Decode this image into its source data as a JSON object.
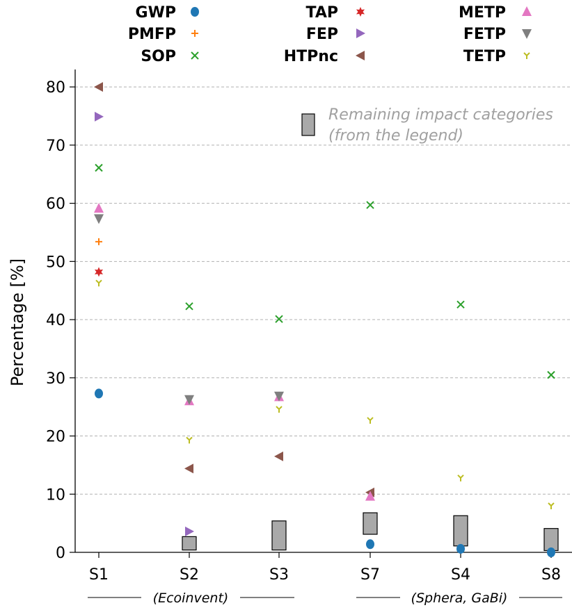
{
  "chart_data": {
    "type": "scatter",
    "ylabel": "Percentage [%]",
    "ylim": [
      0,
      83
    ],
    "yticks": [
      0,
      10,
      20,
      30,
      40,
      50,
      60,
      70,
      80
    ],
    "grid": "horizontal dashed",
    "legend_placement": "top",
    "categories": [
      "S1",
      "S2",
      "S3",
      "S7",
      "S4",
      "S8"
    ],
    "groups": [
      {
        "label": "(Ecoinvent)",
        "categories": [
          "S1",
          "S2",
          "S3"
        ]
      },
      {
        "label": "(Sphera, GaBi)",
        "categories": [
          "S7",
          "S4",
          "S8"
        ]
      }
    ],
    "series": [
      {
        "name": "GWP",
        "marker": "circle",
        "color": "#1f77b4",
        "values": [
          27.3,
          null,
          null,
          1.4,
          0.6,
          0.0
        ]
      },
      {
        "name": "PMFP",
        "marker": "plus",
        "color": "#ff7f0e",
        "values": [
          53.4,
          null,
          null,
          null,
          null,
          null
        ]
      },
      {
        "name": "SOP",
        "marker": "x",
        "color": "#2ca02c",
        "values": [
          66.1,
          42.3,
          40.1,
          59.7,
          42.6,
          30.5
        ]
      },
      {
        "name": "TAP",
        "marker": "star",
        "color": "#d62728",
        "values": [
          48.2,
          null,
          null,
          null,
          null,
          null
        ]
      },
      {
        "name": "FEP",
        "marker": "triangle-right",
        "color": "#9467bd",
        "values": [
          74.9,
          3.6,
          null,
          null,
          null,
          null
        ]
      },
      {
        "name": "HTPnc",
        "marker": "triangle-left",
        "color": "#8c564b",
        "values": [
          80.0,
          14.4,
          16.5,
          10.3,
          null,
          null
        ]
      },
      {
        "name": "METP",
        "marker": "triangle-up",
        "color": "#e377c2",
        "values": [
          59.1,
          26.0,
          26.7,
          9.6,
          null,
          null
        ]
      },
      {
        "name": "FETP",
        "marker": "triangle-down",
        "color": "#7f7f7f",
        "values": [
          57.4,
          26.3,
          26.9,
          null,
          null,
          null
        ]
      },
      {
        "name": "TETP",
        "marker": "tri-down",
        "color": "#bcbd22",
        "values": [
          46.3,
          19.3,
          24.6,
          22.7,
          12.8,
          8.0
        ]
      }
    ],
    "remaining_boxes": [
      {
        "category": "S1",
        "low": null,
        "high": null
      },
      {
        "category": "S2",
        "low": 0.4,
        "high": 2.7
      },
      {
        "category": "S3",
        "low": 0.4,
        "high": 5.4
      },
      {
        "category": "S7",
        "low": 3.1,
        "high": 6.8
      },
      {
        "category": "S4",
        "low": 1.1,
        "high": 6.3
      },
      {
        "category": "S8",
        "low": 0.3,
        "high": 4.1
      }
    ],
    "annotation": {
      "lines": [
        "Remaining impact categories",
        "(from the legend)"
      ],
      "box_color": "#a9a9a9"
    }
  }
}
